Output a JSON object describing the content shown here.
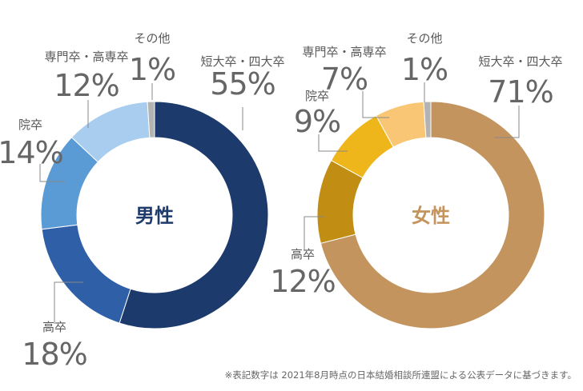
{
  "chart_data": [
    {
      "type": "pie",
      "title": "男性",
      "slices": [
        {
          "label": "短大卒・四大卒",
          "value": 55,
          "display": "55%",
          "color": "#1c3a6b"
        },
        {
          "label": "高卒",
          "value": 18,
          "display": "18%",
          "color": "#2e5fa7"
        },
        {
          "label": "院卒",
          "value": 14,
          "display": "14%",
          "color": "#5a9bd6"
        },
        {
          "label": "専門卒・高専卒",
          "value": 12,
          "display": "12%",
          "color": "#a9cdef"
        },
        {
          "label": "その他",
          "value": 1,
          "display": "1%",
          "color": "#b3b3b3"
        }
      ]
    },
    {
      "type": "pie",
      "title": "女性",
      "slices": [
        {
          "label": "短大卒・四大卒",
          "value": 71,
          "display": "71%",
          "color": "#c4945f"
        },
        {
          "label": "高卒",
          "value": 12,
          "display": "12%",
          "color": "#c18d12"
        },
        {
          "label": "院卒",
          "value": 9,
          "display": "9%",
          "color": "#efb61c"
        },
        {
          "label": "専門卒・高専卒",
          "value": 7,
          "display": "7%",
          "color": "#f8c674"
        },
        {
          "label": "その他",
          "value": 1,
          "display": "1%",
          "color": "#b3b3b3"
        }
      ]
    }
  ],
  "title_colors": [
    "#1c3a6b",
    "#c4945f"
  ],
  "footnote": "※表記数字は 2021年8月時点の日本結婚相談所連盟による公表データに基づきます。"
}
